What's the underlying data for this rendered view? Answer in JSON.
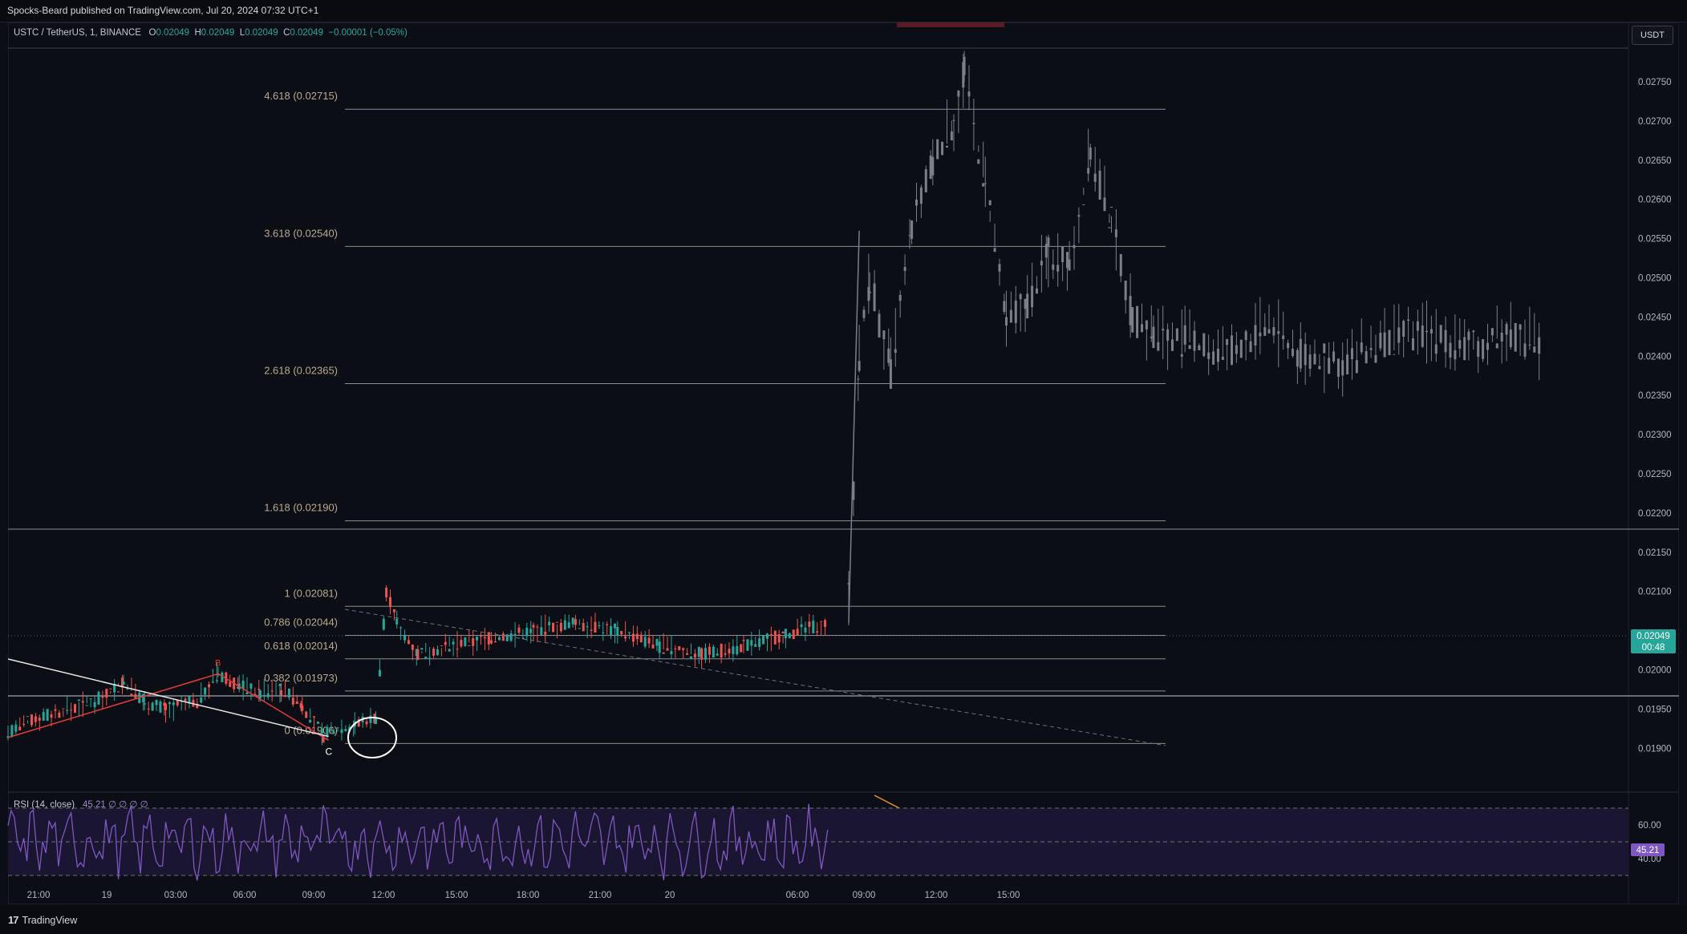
{
  "header": {
    "publisher": "Spocks-Beard published on TradingView.com, Jul 20, 2024 07:32 UTC+1"
  },
  "legend": {
    "symbol": "USTC / TetherUS, 1, BINANCE",
    "o_label": "O",
    "o_value": "0.02049",
    "h_label": "H",
    "h_value": "0.02049",
    "l_label": "L",
    "l_value": "0.02049",
    "c_label": "C",
    "c_value": "0.02049",
    "change": "−0.00001 (−0.05%)"
  },
  "currency_button": "USDT",
  "price_badge": {
    "value": "0.02049",
    "countdown": "00:48"
  },
  "rsi": {
    "label": "RSI (14, close)",
    "value_text": "45.21  ∅  ∅  ∅  ∅",
    "badge": "45.21"
  },
  "footer": {
    "brand": "TradingView"
  },
  "colors": {
    "up": "#26a69a",
    "down": "#ef5350",
    "wick_gray": "#7c7f88",
    "rsi": "#7e57c2",
    "fib": "#8a8c93"
  },
  "chart_data": {
    "type": "line",
    "title": "USTC / TetherUS, 1, BINANCE",
    "y_axis": {
      "ticks": [
        "0.02750",
        "0.02700",
        "0.02650",
        "0.02600",
        "0.02550",
        "0.02500",
        "0.02450",
        "0.02400",
        "0.02350",
        "0.02300",
        "0.02250",
        "0.02200",
        "0.02150",
        "0.02100",
        "0.02000",
        "0.01950",
        "0.01900"
      ],
      "ylim": [
        0.0186,
        0.0278
      ]
    },
    "x_axis": {
      "ticks": [
        "21:00",
        "19",
        "03:00",
        "06:00",
        "09:00",
        "12:00",
        "15:00",
        "18:00",
        "21:00",
        "20",
        "06:00",
        "09:00",
        "12:00",
        "15:00"
      ]
    },
    "fib_levels": [
      {
        "label": "4.618 (0.02715)",
        "price": 0.02715
      },
      {
        "label": "3.618 (0.02540)",
        "price": 0.0254
      },
      {
        "label": "2.618 (0.02365)",
        "price": 0.02365
      },
      {
        "label": "1.618 (0.02190)",
        "price": 0.0219
      },
      {
        "label": "1 (0.02081)",
        "price": 0.02081
      },
      {
        "label": "0.786 (0.02044)",
        "price": 0.02044
      },
      {
        "label": "0.618 (0.02014)",
        "price": 0.02014
      },
      {
        "label": "0.382 (0.01973)",
        "price": 0.01973
      },
      {
        "label": "0 (0.01906)",
        "price": 0.01906
      }
    ],
    "waves": [
      {
        "label": "B",
        "price": 0.01995
      },
      {
        "label": "C",
        "price": 0.0191
      }
    ],
    "series": [
      {
        "name": "USTC / TetherUS",
        "segments": [
          {
            "kind": "history",
            "points": [
              {
                "t": 0,
                "p": 0.0192
              },
              {
                "t": 6,
                "p": 0.0194
              },
              {
                "t": 12,
                "p": 0.0195
              },
              {
                "t": 18,
                "p": 0.01965
              },
              {
                "t": 22,
                "p": 0.01985
              },
              {
                "t": 26,
                "p": 0.0196
              },
              {
                "t": 30,
                "p": 0.0195
              },
              {
                "t": 36,
                "p": 0.0196
              },
              {
                "t": 40,
                "p": 0.01995
              },
              {
                "t": 44,
                "p": 0.0198
              },
              {
                "t": 48,
                "p": 0.0197
              },
              {
                "t": 52,
                "p": 0.01975
              },
              {
                "t": 56,
                "p": 0.01955
              },
              {
                "t": 60,
                "p": 0.01915
              },
              {
                "t": 62,
                "p": 0.01925
              },
              {
                "t": 66,
                "p": 0.0193
              },
              {
                "t": 70,
                "p": 0.0194
              },
              {
                "t": 72,
                "p": 0.021
              },
              {
                "t": 74,
                "p": 0.0206
              },
              {
                "t": 78,
                "p": 0.0202
              },
              {
                "t": 84,
                "p": 0.0203
              },
              {
                "t": 92,
                "p": 0.0204
              },
              {
                "t": 100,
                "p": 0.0205
              },
              {
                "t": 108,
                "p": 0.0206
              },
              {
                "t": 116,
                "p": 0.0205
              },
              {
                "t": 124,
                "p": 0.0203
              },
              {
                "t": 132,
                "p": 0.0202
              },
              {
                "t": 140,
                "p": 0.0203
              },
              {
                "t": 148,
                "p": 0.02045
              },
              {
                "t": 156,
                "p": 0.0206
              }
            ]
          },
          {
            "kind": "future",
            "points": [
              {
                "t": 160,
                "p": 0.0209
              },
              {
                "t": 162,
                "p": 0.024
              },
              {
                "t": 164,
                "p": 0.025
              },
              {
                "t": 168,
                "p": 0.0238
              },
              {
                "t": 172,
                "p": 0.0256
              },
              {
                "t": 176,
                "p": 0.0265
              },
              {
                "t": 180,
                "p": 0.027
              },
              {
                "t": 182,
                "p": 0.0276
              },
              {
                "t": 186,
                "p": 0.0262
              },
              {
                "t": 190,
                "p": 0.0244
              },
              {
                "t": 194,
                "p": 0.0247
              },
              {
                "t": 198,
                "p": 0.0253
              },
              {
                "t": 202,
                "p": 0.0252
              },
              {
                "t": 206,
                "p": 0.0266
              },
              {
                "t": 210,
                "p": 0.0257
              },
              {
                "t": 214,
                "p": 0.0245
              },
              {
                "t": 218,
                "p": 0.0243
              },
              {
                "t": 224,
                "p": 0.0242
              },
              {
                "t": 232,
                "p": 0.024
              },
              {
                "t": 240,
                "p": 0.0244
              },
              {
                "t": 246,
                "p": 0.024
              },
              {
                "t": 254,
                "p": 0.0239
              },
              {
                "t": 262,
                "p": 0.0242
              },
              {
                "t": 270,
                "p": 0.0243
              },
              {
                "t": 278,
                "p": 0.0241
              },
              {
                "t": 286,
                "p": 0.0243
              },
              {
                "t": 292,
                "p": 0.0241
              }
            ]
          }
        ]
      }
    ],
    "rsi_series": {
      "levels": [
        70,
        50,
        30
      ],
      "ticks": [
        "60.00",
        "40.00"
      ],
      "last": 45.21
    },
    "grid": false,
    "legend": "top-left"
  }
}
